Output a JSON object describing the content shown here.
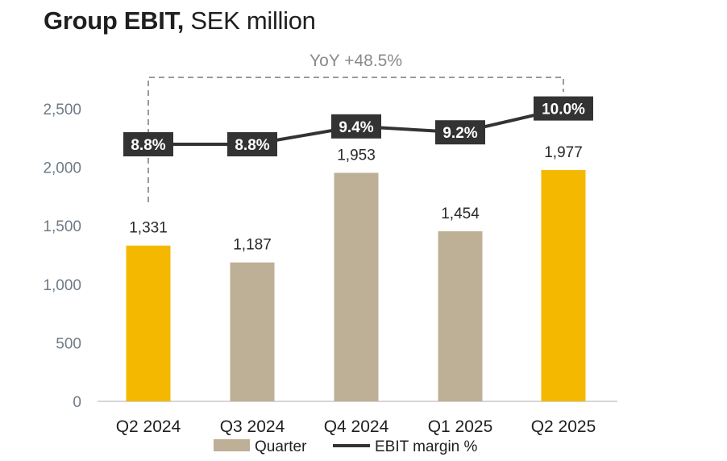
{
  "title": {
    "bold": "Group EBIT,",
    "rest": " SEK million"
  },
  "annotation": "YoY +48.5%",
  "chart_data": {
    "type": "bar",
    "title": "Group EBIT, SEK million",
    "categories": [
      "Q2 2024",
      "Q3 2024",
      "Q4 2024",
      "Q1 2025",
      "Q2 2025"
    ],
    "series": [
      {
        "name": "Quarter",
        "type": "bar",
        "values": [
          1331,
          1187,
          1953,
          1454,
          1977
        ],
        "value_labels": [
          "1,331",
          "1,187",
          "1,953",
          "1,454",
          "1,977"
        ]
      },
      {
        "name": "EBIT margin %",
        "type": "line",
        "values": [
          8.8,
          8.8,
          9.4,
          9.2,
          10.0
        ],
        "value_labels": [
          "8.8%",
          "8.8%",
          "9.4%",
          "9.2%",
          "10.0%"
        ]
      }
    ],
    "highlighted_categories": [
      "Q2 2024",
      "Q2 2025"
    ],
    "yticks": [
      "0",
      "500",
      "1,000",
      "1,500",
      "2,000",
      "2,500"
    ],
    "ylim": [
      0,
      2500
    ],
    "grid": false,
    "legend": "bottom",
    "colors": {
      "highlight": "#F5B800",
      "bar": "#BEB096",
      "line": "#333333",
      "marginLabelBg": "#333333",
      "bracket": "#9a9a9a"
    }
  }
}
